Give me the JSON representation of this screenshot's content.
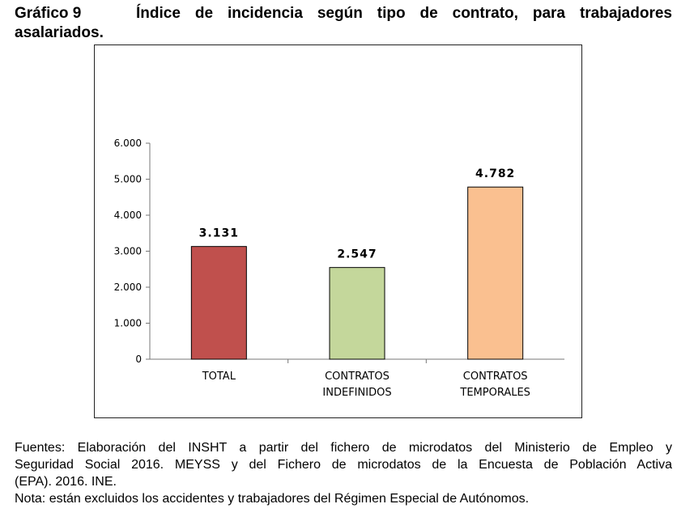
{
  "heading": {
    "label": "Gráfico 9",
    "title_line1": "Índice de incidencia según tipo de contrato, para trabajadores",
    "title_line2": "asalariados."
  },
  "chart_data": {
    "type": "bar",
    "categories": [
      [
        "TOTAL"
      ],
      [
        "CONTRATOS",
        "INDEFINIDOS"
      ],
      [
        "CONTRATOS",
        "TEMPORALES"
      ]
    ],
    "values": [
      3131,
      2547,
      4782
    ],
    "value_labels": [
      "3.131",
      "2.547",
      "4.782"
    ],
    "bar_colors": [
      "#c0504d",
      "#c4d79b",
      "#fac090"
    ],
    "yticks": [
      0,
      1000,
      2000,
      3000,
      4000,
      5000,
      6000
    ],
    "ytick_labels": [
      "0",
      "1.000",
      "2.000",
      "3.000",
      "4.000",
      "5.000",
      "6.000"
    ],
    "ylim": [
      0,
      6000
    ],
    "grid": false,
    "legend": false
  },
  "notes": {
    "line1": "Fuentes: Elaboración del INSHT a partir del fichero de microdatos del Ministerio de Empleo y",
    "line2": "Seguridad Social 2016. MEYSS y del Fichero de microdatos de la Encuesta de Población Activa",
    "line3": "(EPA). 2016. INE.",
    "line4": "Nota: están excluidos los accidentes y trabajadores del Régimen Especial de Autónomos."
  }
}
